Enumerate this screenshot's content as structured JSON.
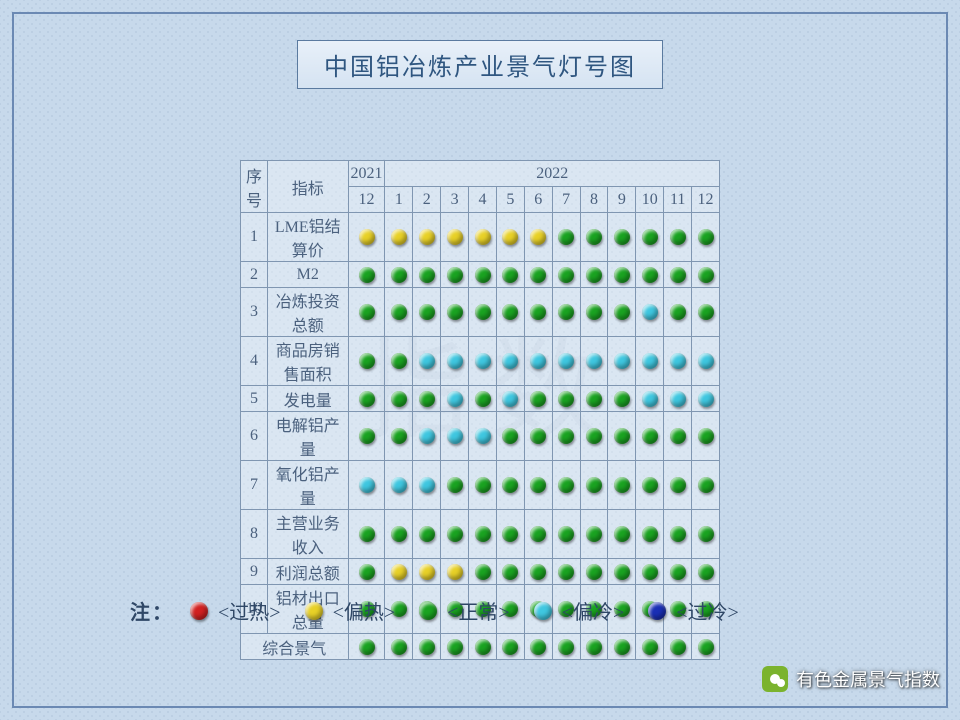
{
  "title": "中国铝冶炼产业景气灯号图",
  "colors": {
    "overheat": "#d12020",
    "warm": "#e8d127",
    "normal": "#1aa321",
    "cool": "#3fc7e0",
    "cold": "#1a2fb5",
    "border": "#7f96b1",
    "text": "#4b617e",
    "bg": "#c7d9eb"
  },
  "header": {
    "seq": "序号",
    "indicator": "指标",
    "year_groups": [
      {
        "label": "2021",
        "months": [
          "12"
        ]
      },
      {
        "label": "2022",
        "months": [
          "1",
          "2",
          "3",
          "4",
          "5",
          "6",
          "7",
          "8",
          "9",
          "10",
          "11",
          "12"
        ]
      }
    ]
  },
  "rows": [
    {
      "seq": "1",
      "name": "LME铝结算价",
      "cells": [
        "warm",
        "warm",
        "warm",
        "warm",
        "warm",
        "warm",
        "warm",
        "normal",
        "normal",
        "normal",
        "normal",
        "normal",
        "normal"
      ]
    },
    {
      "seq": "2",
      "name": "M2",
      "cells": [
        "normal",
        "normal",
        "normal",
        "normal",
        "normal",
        "normal",
        "normal",
        "normal",
        "normal",
        "normal",
        "normal",
        "normal",
        "normal"
      ]
    },
    {
      "seq": "3",
      "name": "冶炼投资总额",
      "cells": [
        "normal",
        "normal",
        "normal",
        "normal",
        "normal",
        "normal",
        "normal",
        "normal",
        "normal",
        "normal",
        "cool",
        "normal",
        "normal"
      ]
    },
    {
      "seq": "4",
      "name": "商品房销售面积",
      "cells": [
        "normal",
        "normal",
        "cool",
        "cool",
        "cool",
        "cool",
        "cool",
        "cool",
        "cool",
        "cool",
        "cool",
        "cool",
        "cool"
      ]
    },
    {
      "seq": "5",
      "name": "发电量",
      "cells": [
        "normal",
        "normal",
        "normal",
        "cool",
        "normal",
        "cool",
        "normal",
        "normal",
        "normal",
        "normal",
        "cool",
        "cool",
        "cool"
      ]
    },
    {
      "seq": "6",
      "name": "电解铝产量",
      "cells": [
        "normal",
        "normal",
        "cool",
        "cool",
        "cool",
        "normal",
        "normal",
        "normal",
        "normal",
        "normal",
        "normal",
        "normal",
        "normal"
      ]
    },
    {
      "seq": "7",
      "name": "氧化铝产量",
      "cells": [
        "cool",
        "cool",
        "cool",
        "normal",
        "normal",
        "normal",
        "normal",
        "normal",
        "normal",
        "normal",
        "normal",
        "normal",
        "normal"
      ]
    },
    {
      "seq": "8",
      "name": "主营业务收入",
      "cells": [
        "normal",
        "normal",
        "normal",
        "normal",
        "normal",
        "normal",
        "normal",
        "normal",
        "normal",
        "normal",
        "normal",
        "normal",
        "normal"
      ]
    },
    {
      "seq": "9",
      "name": "利润总额",
      "cells": [
        "normal",
        "warm",
        "warm",
        "warm",
        "normal",
        "normal",
        "normal",
        "normal",
        "normal",
        "normal",
        "normal",
        "normal",
        "normal"
      ]
    },
    {
      "seq": "10",
      "name": "铝材出口总量",
      "cells": [
        "normal",
        "normal",
        "normal",
        "normal",
        "normal",
        "normal",
        "normal",
        "normal",
        "normal",
        "normal",
        "normal",
        "normal",
        "normal"
      ]
    },
    {
      "seq": "",
      "name": "综合景气",
      "cells": [
        "normal",
        "normal",
        "normal",
        "normal",
        "normal",
        "normal",
        "normal",
        "normal",
        "normal",
        "normal",
        "normal",
        "normal",
        "normal"
      ]
    }
  ],
  "legend": {
    "lead": "注：",
    "items": [
      {
        "state": "overheat",
        "label": "<过热>"
      },
      {
        "state": "warm",
        "label": "<偏热>"
      },
      {
        "state": "normal",
        "label": "<正常>"
      },
      {
        "state": "cool",
        "label": "<偏冷>"
      },
      {
        "state": "cold",
        "label": "<过冷>"
      }
    ]
  },
  "attribution": "有色金属景气指数",
  "watermark": "指数"
}
